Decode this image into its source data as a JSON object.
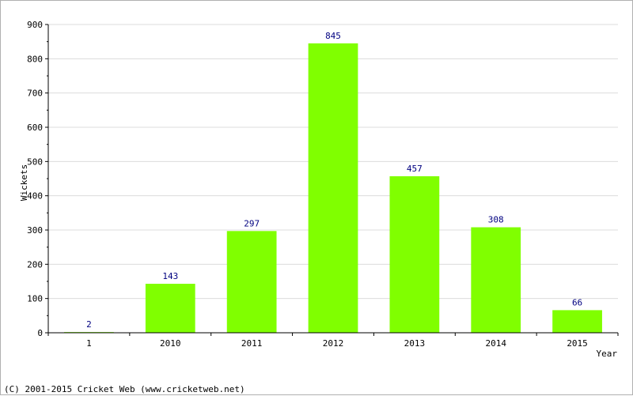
{
  "chart_data": {
    "type": "bar",
    "title": "",
    "xlabel": "Year",
    "ylabel": "Wickets",
    "categories": [
      "1",
      "2010",
      "2011",
      "2012",
      "2013",
      "2014",
      "2015"
    ],
    "values": [
      2,
      143,
      297,
      845,
      457,
      308,
      66
    ],
    "ylim": [
      0,
      900
    ],
    "yticks": [
      0,
      100,
      200,
      300,
      400,
      500,
      600,
      700,
      800,
      900
    ],
    "grid": true,
    "legend": "none",
    "bar_color": "#80ff00",
    "label_color": "#000080"
  },
  "footer": {
    "credit": "(C) 2001-2015 Cricket Web (www.cricketweb.net)"
  }
}
